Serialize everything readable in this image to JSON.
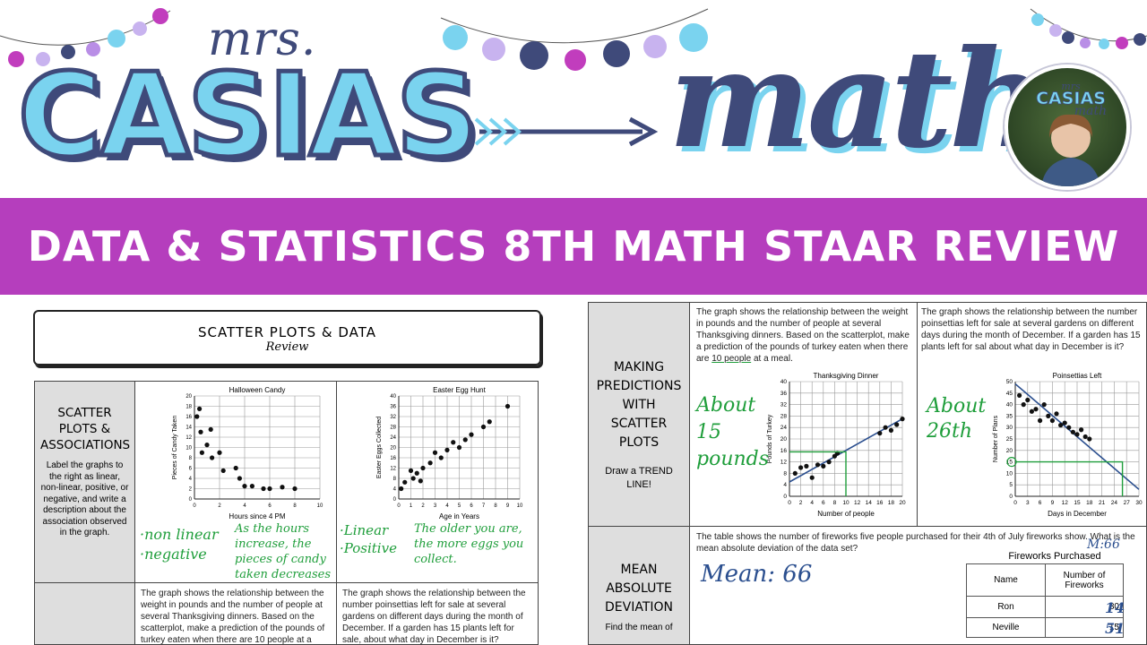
{
  "header": {
    "logo_mrs": "mrs.",
    "logo_casias": "CASIAS",
    "logo_math": "math",
    "avatar_mrs": "mrs",
    "avatar_casias": "CASIAS",
    "avatar_math": "math",
    "banner": "DATA & STATISTICS 8TH MATH STAAR REVIEW"
  },
  "colors": {
    "banner": "#b53ebd",
    "logo_light": "#7ad3ef",
    "logo_dark": "#3f4a7a",
    "handwriting_green": "#1f9e3b",
    "handwriting_blue": "#2b4f8f"
  },
  "left_page": {
    "title": "SCATTER PLOTS & DATA",
    "subtitle": "Review",
    "side_title": "SCATTER PLOTS & ASSOCIATIONS",
    "side_body": "Label the graphs to the right as linear, non-linear, positive, or negative, and write a description about the association observed in the graph.",
    "graph1_answer1": "·non linear",
    "graph1_answer2": "·negative",
    "graph1_desc": "As the hours increase, the pieces of candy taken decreases",
    "graph2_answer1": "·Linear",
    "graph2_answer2": "·Positive",
    "graph2_desc": "The older you are, the more eggs you collect.",
    "bottom_q1": "The graph shows the relationship between the weight in pounds and the number of people at several Thanksgiving dinners. Based on the scatterplot, make a prediction of the pounds of turkey eaten when there are 10 people at a",
    "bottom_q2": "The graph shows the relationship between the number poinsettias left for sale at several gardens on different days during the month of December. If a garden has 15 plants left for sale, about what day in December is it?"
  },
  "right_page": {
    "side1_title": "MAKING PREDICTIONS WITH SCATTER PLOTS",
    "side1_body": "Draw a TREND LINE!",
    "q1_text_a": "The graph shows the relationship between the weight in pounds and the number of people at several Thanksgiving dinners. Based on the scatterplot, make a prediction of the pounds of turkey eaten when there are ",
    "q1_highlight": "10 people",
    "q1_text_b": " at a meal.",
    "q1_answer1": "About",
    "q1_answer2": "15",
    "q1_answer3": "pounds",
    "q2_text": "The graph shows the relationship between the number poinsettias left for sale at several gardens on different days during the month of December. If a garden has 15 plants left for sal about what day in December is it?",
    "q2_answer1": "About",
    "q2_answer2": "26th",
    "side2_title": "MEAN ABSOLUTE DEVIATION",
    "side2_body": "Find the mean of",
    "mad_text": "The table shows the number of fireworks five people purchased for their 4th of July fireworks show. What is the mean absolute deviation of the data set?",
    "mad_mean": "Mean: 66",
    "mad_m": "M:66",
    "table_title": "Fireworks Purchased",
    "table_headers": [
      "Name",
      "Number of Fireworks"
    ],
    "table_rows": [
      {
        "name": "Ron",
        "value": "80",
        "note": "14"
      },
      {
        "name": "Neville",
        "value": "15",
        "note": "51"
      }
    ]
  },
  "chart_data": [
    {
      "type": "scatter",
      "title": "Halloween Candy",
      "xlabel": "Hours since 4 PM",
      "ylabel": "Pieces of Candy Taken",
      "xlim": [
        0,
        10
      ],
      "ylim": [
        0,
        20
      ],
      "xticks": [
        0,
        2,
        4,
        6,
        8,
        10
      ],
      "yticks": [
        0,
        2,
        4,
        6,
        8,
        10,
        12,
        14,
        16,
        18,
        20
      ],
      "points": [
        [
          0.2,
          16
        ],
        [
          0.4,
          17.5
        ],
        [
          0.5,
          13
        ],
        [
          0.6,
          9
        ],
        [
          1,
          10.5
        ],
        [
          1.3,
          13.5
        ],
        [
          1.4,
          8
        ],
        [
          2,
          9
        ],
        [
          2.3,
          5.5
        ],
        [
          3.3,
          6
        ],
        [
          3.6,
          4
        ],
        [
          4,
          2.5
        ],
        [
          4.6,
          2.5
        ],
        [
          5.5,
          2
        ],
        [
          6,
          2
        ],
        [
          7,
          2.3
        ],
        [
          8,
          2
        ]
      ]
    },
    {
      "type": "scatter",
      "title": "Easter Egg Hunt",
      "xlabel": "Age in Years",
      "ylabel": "Easter Eggs Collected",
      "xlim": [
        0,
        10
      ],
      "ylim": [
        0,
        40
      ],
      "xticks": [
        0,
        1,
        2,
        3,
        4,
        5,
        6,
        7,
        8,
        9,
        10
      ],
      "yticks": [
        0,
        4,
        8,
        12,
        16,
        20,
        24,
        28,
        32,
        36,
        40
      ],
      "points": [
        [
          0.2,
          4
        ],
        [
          0.5,
          6.5
        ],
        [
          1,
          11
        ],
        [
          1.2,
          8
        ],
        [
          1.5,
          10
        ],
        [
          1.8,
          7
        ],
        [
          2,
          12
        ],
        [
          2.6,
          14
        ],
        [
          3,
          18
        ],
        [
          3.5,
          16
        ],
        [
          4,
          19
        ],
        [
          4.5,
          22
        ],
        [
          5,
          20
        ],
        [
          5.5,
          23
        ],
        [
          6,
          25
        ],
        [
          7,
          28
        ],
        [
          7.5,
          30
        ],
        [
          9,
          36
        ]
      ]
    },
    {
      "type": "scatter",
      "title": "Thanksgiving Dinner",
      "xlabel": "Number of people",
      "ylabel": "Pounds of Turkey",
      "xlim": [
        0,
        20
      ],
      "ylim": [
        0,
        40
      ],
      "xticks": [
        0,
        2,
        4,
        6,
        8,
        10,
        12,
        14,
        16,
        18,
        20
      ],
      "yticks": [
        0,
        4,
        8,
        12,
        16,
        20,
        24,
        28,
        32,
        36,
        40
      ],
      "points": [
        [
          1,
          8
        ],
        [
          2,
          10
        ],
        [
          3,
          10.5
        ],
        [
          4,
          6.5
        ],
        [
          5,
          11
        ],
        [
          6,
          10.5
        ],
        [
          7,
          12
        ],
        [
          8,
          14
        ],
        [
          8.5,
          15
        ],
        [
          16,
          22
        ],
        [
          17,
          24
        ],
        [
          18,
          23
        ],
        [
          19,
          25
        ],
        [
          20,
          27
        ]
      ],
      "trend_line": [
        [
          0,
          5
        ],
        [
          20,
          27
        ]
      ]
    },
    {
      "type": "scatter",
      "title": "Poinsettias Left",
      "xlabel": "Days in December",
      "ylabel": "Number of Plans",
      "xlim": [
        0,
        30
      ],
      "ylim": [
        0,
        50
      ],
      "xticks": [
        0,
        3,
        6,
        9,
        12,
        15,
        18,
        21,
        24,
        27,
        30
      ],
      "yticks": [
        0,
        5,
        10,
        15,
        20,
        25,
        30,
        35,
        40,
        45,
        50
      ],
      "points": [
        [
          1,
          44
        ],
        [
          2,
          40
        ],
        [
          3,
          42
        ],
        [
          4,
          37
        ],
        [
          5,
          38
        ],
        [
          6,
          33
        ],
        [
          7,
          40
        ],
        [
          8,
          35
        ],
        [
          9,
          33
        ],
        [
          10,
          36
        ],
        [
          11,
          31
        ],
        [
          12,
          32
        ],
        [
          13,
          30
        ],
        [
          14,
          28
        ],
        [
          15,
          27
        ],
        [
          16,
          29
        ],
        [
          17,
          26
        ],
        [
          18,
          25
        ]
      ],
      "trend_line": [
        [
          0,
          49
        ],
        [
          30,
          3
        ]
      ]
    }
  ]
}
